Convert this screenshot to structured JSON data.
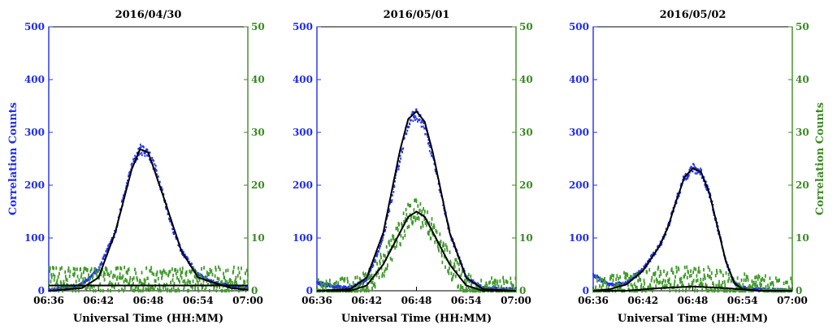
{
  "colors": {
    "left_axis": "#1f2cf0",
    "right_axis": "#3a8a22",
    "blue_data": "#2233ee",
    "green_data": "#3f9a2a",
    "fit_line": "#000000"
  },
  "chart_data": [
    {
      "type": "scatter",
      "title": "2016/04/30",
      "xlabel": "Universal Time (HH:MM)",
      "ylabel": "Correlation Counts",
      "y2label": "",
      "x_ticks": [
        "06:36",
        "06:42",
        "06:48",
        "06:54",
        "07:00"
      ],
      "x_range_minutes": [
        0,
        24
      ],
      "ylim": [
        0,
        500
      ],
      "y_ticks": [
        0,
        100,
        200,
        300,
        400,
        500
      ],
      "y2lim": [
        0,
        50
      ],
      "y2_ticks": [
        0,
        10,
        20,
        30,
        40,
        50
      ],
      "series": [
        {
          "color": "blue",
          "axis": "left",
          "x": [
            "06:36",
            "06:38",
            "06:40",
            "06:42",
            "06:44",
            "06:45",
            "06:46",
            "06:47",
            "06:48",
            "06:49",
            "06:50",
            "06:51",
            "06:52",
            "06:54",
            "06:56",
            "06:58",
            "07:00"
          ],
          "y": [
            0,
            5,
            12,
            40,
            110,
            175,
            235,
            268,
            262,
            225,
            170,
            115,
            75,
            30,
            15,
            8,
            5
          ]
        },
        {
          "color": "green",
          "axis": "right",
          "x": [
            "06:36",
            "06:40",
            "06:44",
            "06:48",
            "06:52",
            "06:56",
            "07:00"
          ],
          "y": [
            2,
            2,
            2,
            2,
            2,
            2,
            2
          ]
        },
        {
          "color": "black",
          "axis": "left",
          "x": [
            "06:36",
            "06:40",
            "06:42",
            "06:44",
            "06:46",
            "06:47",
            "06:48",
            "06:50",
            "06:52",
            "06:54",
            "06:58",
            "07:00"
          ],
          "y": [
            0,
            5,
            25,
            110,
            230,
            268,
            262,
            170,
            75,
            25,
            5,
            2
          ]
        },
        {
          "color": "black",
          "axis": "right",
          "x": [
            "06:36",
            "07:00"
          ],
          "y": [
            1,
            1
          ]
        }
      ]
    },
    {
      "type": "scatter",
      "title": "2016/05/01",
      "xlabel": "Universal Time (HH:MM)",
      "ylabel": "",
      "y2label": "",
      "x_ticks": [
        "06:36",
        "06:42",
        "06:48",
        "06:54",
        "07:00"
      ],
      "x_range_minutes": [
        0,
        24
      ],
      "ylim": [
        0,
        500
      ],
      "y_ticks": [
        0,
        100,
        200,
        300,
        400,
        500
      ],
      "y2lim": [
        0,
        50
      ],
      "y2_ticks": [
        0,
        10,
        20,
        30,
        40,
        50
      ],
      "series": [
        {
          "color": "blue",
          "axis": "left",
          "x": [
            "06:36",
            "06:38",
            "06:40",
            "06:42",
            "06:44",
            "06:46",
            "06:47",
            "06:48",
            "06:49",
            "06:50",
            "06:52",
            "06:54",
            "06:56",
            "07:00"
          ],
          "y": [
            15,
            8,
            5,
            20,
            100,
            250,
            320,
            335,
            310,
            250,
            110,
            25,
            5,
            2
          ]
        },
        {
          "color": "green",
          "axis": "right",
          "x": [
            "06:36",
            "06:40",
            "06:42",
            "06:44",
            "06:46",
            "06:47",
            "06:48",
            "06:49",
            "06:50",
            "06:52",
            "06:54",
            "06:56",
            "07:00"
          ],
          "y": [
            0,
            0,
            1,
            5,
            11,
            14,
            15,
            14,
            11,
            5,
            1,
            0,
            0
          ]
        },
        {
          "color": "black",
          "axis": "left",
          "x": [
            "06:36",
            "06:40",
            "06:42",
            "06:44",
            "06:46",
            "06:47",
            "06:48",
            "06:49",
            "06:50",
            "06:52",
            "06:54",
            "06:56",
            "07:00"
          ],
          "y": [
            0,
            3,
            25,
            110,
            265,
            325,
            340,
            320,
            260,
            110,
            25,
            3,
            0
          ]
        },
        {
          "color": "black",
          "axis": "right",
          "x": [
            "06:36",
            "06:40",
            "06:42",
            "06:44",
            "06:46",
            "06:47",
            "06:48",
            "06:49",
            "06:50",
            "06:52",
            "06:54",
            "06:56",
            "07:00"
          ],
          "y": [
            0,
            0,
            1,
            5,
            11,
            14,
            15,
            14,
            11,
            5,
            1,
            0,
            0
          ]
        }
      ]
    },
    {
      "type": "scatter",
      "title": "2016/05/02",
      "xlabel": "Universal Time (HH:MM)",
      "ylabel": "",
      "y2label": "Correlation Counts",
      "x_ticks": [
        "06:36",
        "06:42",
        "06:48",
        "06:54",
        "07:00"
      ],
      "x_range_minutes": [
        0,
        24
      ],
      "ylim": [
        0,
        500
      ],
      "y_ticks": [
        0,
        100,
        200,
        300,
        400,
        500
      ],
      "y2lim": [
        0,
        50
      ],
      "y2_ticks": [
        0,
        10,
        20,
        30,
        40,
        50
      ],
      "series": [
        {
          "color": "blue",
          "axis": "left",
          "x": [
            "06:36",
            "06:37",
            "06:38",
            "06:40",
            "06:42",
            "06:44",
            "06:45",
            "06:46",
            "06:47",
            "06:48",
            "06:49",
            "06:50",
            "06:51",
            "06:52",
            "06:53",
            "06:54",
            "06:56",
            "07:00"
          ],
          "y": [
            30,
            20,
            10,
            15,
            40,
            85,
            120,
            170,
            215,
            232,
            225,
            185,
            120,
            55,
            15,
            5,
            2,
            0
          ]
        },
        {
          "color": "green",
          "axis": "right",
          "x": [
            "06:36",
            "06:40",
            "06:44",
            "06:46",
            "06:48",
            "06:50",
            "06:52",
            "06:54",
            "06:58",
            "07:00"
          ],
          "y": [
            0,
            1,
            2,
            2,
            2,
            2,
            1,
            1,
            0,
            0
          ]
        },
        {
          "color": "black",
          "axis": "left",
          "x": [
            "06:36",
            "06:38",
            "06:40",
            "06:42",
            "06:44",
            "06:45",
            "06:46",
            "06:47",
            "06:48",
            "06:49",
            "06:50",
            "06:51",
            "06:52",
            "06:53",
            "06:54",
            "06:56",
            "07:00"
          ],
          "y": [
            0,
            3,
            12,
            38,
            85,
            120,
            170,
            215,
            232,
            225,
            185,
            120,
            55,
            15,
            3,
            0,
            0
          ]
        },
        {
          "color": "black",
          "axis": "right",
          "x": [
            "06:36",
            "06:40",
            "06:44",
            "06:48",
            "06:52",
            "06:56",
            "07:00"
          ],
          "y": [
            0,
            0,
            0.5,
            0.8,
            0.5,
            0,
            0
          ]
        }
      ]
    }
  ]
}
